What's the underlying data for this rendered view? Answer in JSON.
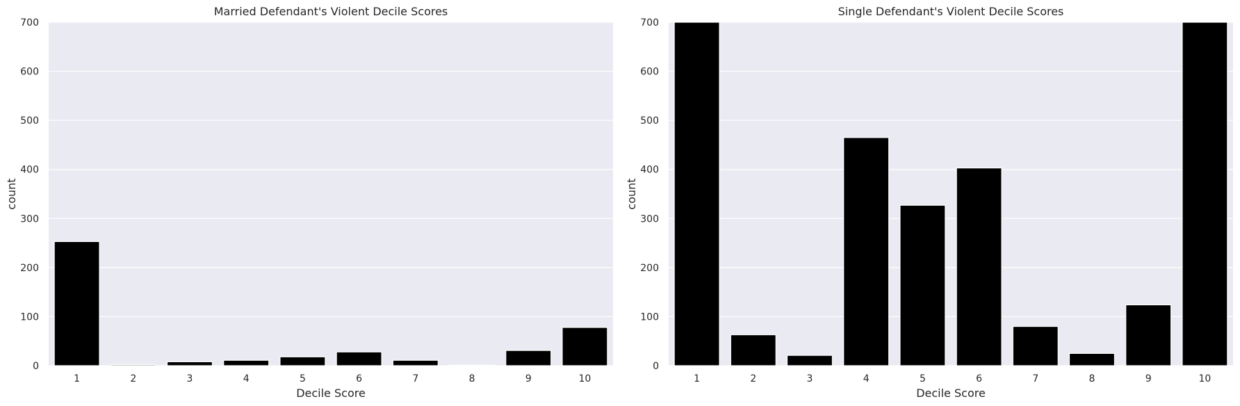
{
  "chart_data": [
    {
      "type": "bar",
      "title": "Married Defendant's Violent Decile Scores",
      "xlabel": "Decile Score",
      "ylabel": "count",
      "categories": [
        "1",
        "2",
        "3",
        "4",
        "5",
        "6",
        "7",
        "8",
        "9",
        "10"
      ],
      "values": [
        253,
        2,
        8,
        11,
        18,
        28,
        11,
        1,
        31,
        78
      ],
      "ylim": [
        0,
        700
      ],
      "yticks": [
        0,
        100,
        200,
        300,
        400,
        500,
        600,
        700
      ],
      "grid": true,
      "bar_color": "#000000",
      "background": "#eaeaf2"
    },
    {
      "type": "bar",
      "title": "Single Defendant's Violent Decile Scores",
      "xlabel": "Decile Score",
      "ylabel": "count",
      "categories": [
        "1",
        "2",
        "3",
        "4",
        "5",
        "6",
        "7",
        "8",
        "9",
        "10"
      ],
      "values": [
        700,
        63,
        21,
        465,
        327,
        403,
        80,
        25,
        124,
        700
      ],
      "ylim": [
        0,
        700
      ],
      "yticks": [
        0,
        100,
        200,
        300,
        400,
        500,
        600,
        700
      ],
      "grid": true,
      "bar_color": "#000000",
      "background": "#eaeaf2"
    }
  ]
}
